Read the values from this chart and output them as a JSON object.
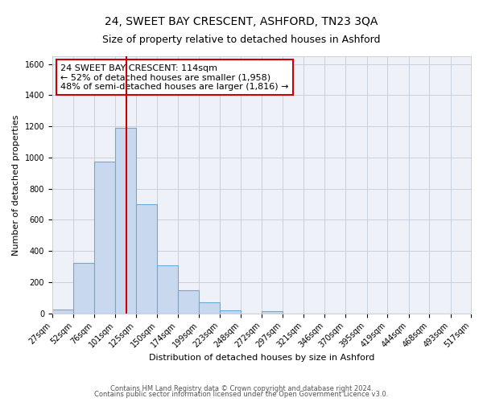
{
  "title": "24, SWEET BAY CRESCENT, ASHFORD, TN23 3QA",
  "subtitle": "Size of property relative to detached houses in Ashford",
  "xlabel": "Distribution of detached houses by size in Ashford",
  "ylabel": "Number of detached properties",
  "bin_labels": [
    "27sqm",
    "52sqm",
    "76sqm",
    "101sqm",
    "125sqm",
    "150sqm",
    "174sqm",
    "199sqm",
    "223sqm",
    "248sqm",
    "272sqm",
    "297sqm",
    "321sqm",
    "346sqm",
    "370sqm",
    "395sqm",
    "419sqm",
    "444sqm",
    "468sqm",
    "493sqm",
    "517sqm"
  ],
  "bin_edges": [
    27,
    52,
    76,
    101,
    125,
    150,
    174,
    199,
    223,
    248,
    272,
    297,
    321,
    346,
    370,
    395,
    419,
    444,
    468,
    493,
    517
  ],
  "bar_heights": [
    25,
    325,
    975,
    1190,
    700,
    310,
    150,
    70,
    20,
    0,
    15,
    0,
    0,
    0,
    0,
    0,
    0,
    0,
    0,
    0
  ],
  "bar_color": "#c8d9ef",
  "bar_edge_color": "#6aaad4",
  "vline_x": 114,
  "vline_color": "#cc0000",
  "annotation_line1": "24 SWEET BAY CRESCENT: 114sqm",
  "annotation_line2": "← 52% of detached houses are smaller (1,958)",
  "annotation_line3": "48% of semi-detached houses are larger (1,816) →",
  "box_color": "#cc0000",
  "ylim": [
    0,
    1650
  ],
  "yticks": [
    0,
    200,
    400,
    600,
    800,
    1000,
    1200,
    1400,
    1600
  ],
  "grid_color": "#c8d0dc",
  "bg_color": "#eef2f8",
  "footer1": "Contains HM Land Registry data © Crown copyright and database right 2024.",
  "footer2": "Contains public sector information licensed under the Open Government Licence v3.0.",
  "title_fontsize": 10,
  "subtitle_fontsize": 9,
  "axis_label_fontsize": 8,
  "tick_fontsize": 7,
  "annotation_fontsize": 8,
  "footer_fontsize": 6
}
